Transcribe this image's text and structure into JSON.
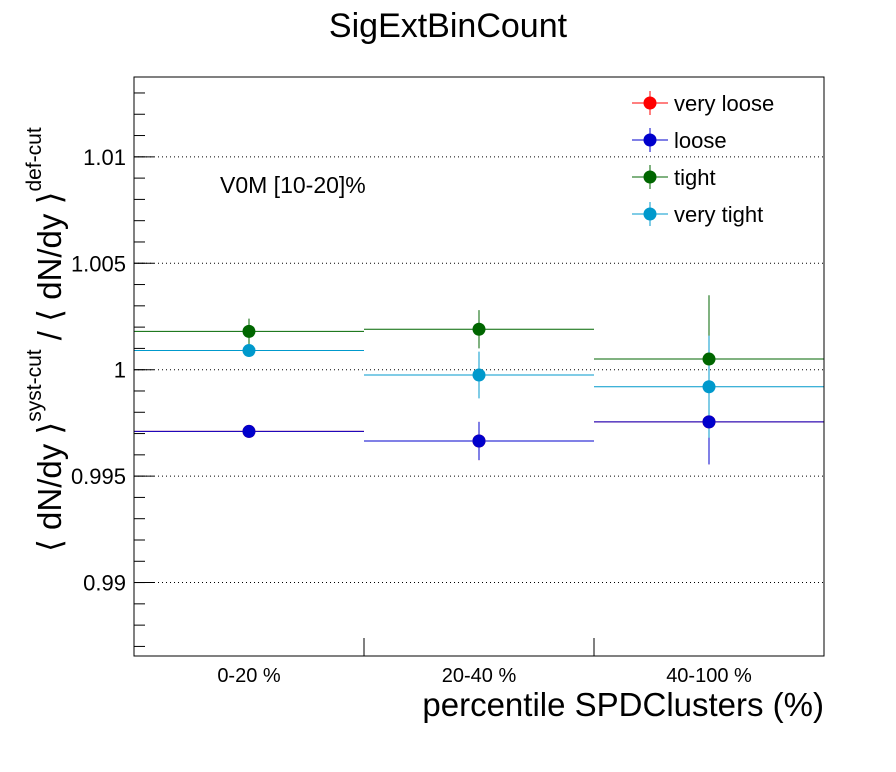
{
  "chart_data": {
    "type": "scatter",
    "title": "SigExtBinCount",
    "xlabel": "percentile SPDClusters (%)",
    "ylabel": {
      "pre": "⟨ dN/dy ⟩",
      "sup1": "syst-cut",
      "mid": " / ⟨ dN/dy ⟩",
      "sup2": "def-cut"
    },
    "annotation": "V0M [10-20]%",
    "categories": [
      "0-20 %",
      "20-40 %",
      "40-100 %"
    ],
    "x_bin_edges": [
      0,
      20,
      40,
      100
    ],
    "ylim": [
      0.98655,
      1.01375
    ],
    "y_ticks": [
      0.99,
      0.995,
      1,
      1.005,
      1.01
    ],
    "y_tick_labels": [
      "0.99",
      "0.995",
      "1",
      "1.005",
      "1.01"
    ],
    "grid": "horizontal dotted",
    "legend_placement": "top-right",
    "series": [
      {
        "name": "very loose",
        "color": "#ff0000",
        "values": [
          0.9971,
          0.99665,
          0.99755
        ],
        "errors": [
          0.0002,
          0.0009,
          0.002
        ]
      },
      {
        "name": "loose",
        "color": "#0000cc",
        "values": [
          0.9971,
          0.99665,
          0.99755
        ],
        "errors": [
          0.0002,
          0.0009,
          0.002
        ]
      },
      {
        "name": "tight",
        "color": "#006600",
        "values": [
          1.0018,
          1.0019,
          1.0005
        ],
        "errors": [
          0.0006,
          0.0009,
          0.003
        ]
      },
      {
        "name": "very tight",
        "color": "#0099cc",
        "values": [
          1.0009,
          0.99975,
          0.9992
        ],
        "errors": [
          0.0003,
          0.0011,
          0.0024
        ]
      }
    ]
  }
}
